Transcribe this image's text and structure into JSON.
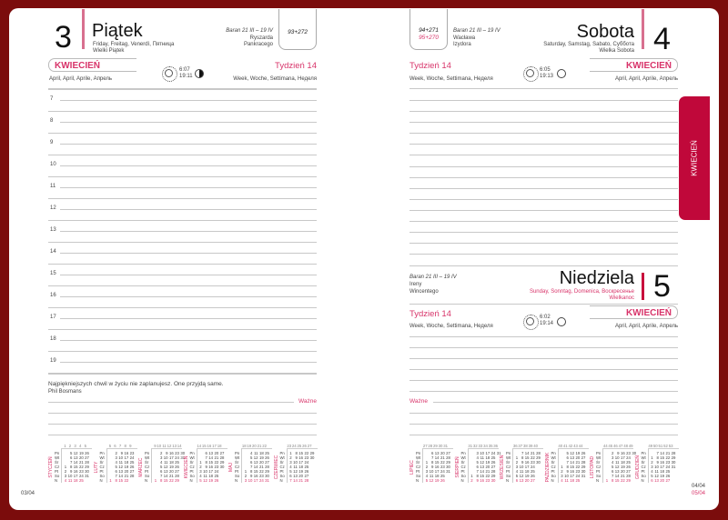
{
  "colors": {
    "frame": "#7b0c0c",
    "accent": "#d8346a",
    "sunday": "#c8103c",
    "tab": "#c0083a"
  },
  "left": {
    "day_number": "3",
    "day_name": "Piątek",
    "day_translations": "Friday, Freitag, Venerdì, Пятница",
    "holiday": "Wielki Piątek",
    "zodiac": "Baran 21 III – 19 IV",
    "name_days": [
      "Ryszarda",
      "Pankracego"
    ],
    "day_count": "93+272",
    "month": "KWIECIEŃ",
    "month_translations": "April, April, Aprile, Апрель",
    "sunrise": "6:07",
    "sunset": "19:11",
    "moon": "moon-half-icon",
    "week": "Tydzień 14",
    "week_translations": "Week, Woche, Settimana, Неделя",
    "hours": [
      "7",
      "8",
      "9",
      "10",
      "11",
      "12",
      "13",
      "14",
      "15",
      "16",
      "17",
      "18",
      "19"
    ],
    "quote": "Najpiękniejszych chwil w życiu nie zaplanujesz. One przyjdą same.",
    "quote_author": "Phil Bosmans",
    "important": "Ważne",
    "page": "03/04"
  },
  "right": {
    "sat": {
      "day_number": "4",
      "day_name": "Sobota",
      "day_translations": "Saturday, Samstag, Sabato, Суббота",
      "holiday": "Wielka Sobota",
      "zodiac": "Baran 21 III – 19 IV",
      "name_days": [
        "Wacława",
        "Izydora"
      ],
      "day_count": "94+271",
      "day_count_next": "95+270",
      "week": "Tydzień 14",
      "week_translations": "Week, Woche, Settimana, Неделя",
      "sunrise": "6:05",
      "sunset": "19:13",
      "month": "KWIECIEŃ",
      "month_translations": "April, April, Aprile, Апрель"
    },
    "sun": {
      "day_number": "5",
      "day_name": "Niedziela",
      "day_translations": "Sunday, Sonntag, Domenica, Воскресенье",
      "holiday": "Wielkanoc",
      "zodiac": "Baran 21 III – 19 IV",
      "name_days": [
        "Ireny",
        "Wincentego"
      ],
      "week": "Tydzień 14",
      "week_translations": "Week, Woche, Settimana, Неделя",
      "sunrise": "6:02",
      "sunset": "19:14",
      "month": "KWIECIEŃ",
      "month_translations": "April, April, Aprile, Апрель"
    },
    "important": "Ważne",
    "page": "04/04",
    "page_next": "05/04",
    "tab": "KWIECIEŃ"
  },
  "weekdays": [
    "Pn",
    "Wt",
    "Śr",
    "Cz",
    "Pt",
    "So",
    "N"
  ],
  "calendars": [
    {
      "name": "STYCZEŃ",
      "weeks": "1 2 3 4 5",
      "rows": [
        "5 12 19 26",
        "6 13 20 27",
        "7 14 21 28",
        "1 8 15 22 29",
        "2 9 16 23 30",
        "3 10 17 24 31",
        "4 11 18 25"
      ]
    },
    {
      "name": "LUTY",
      "weeks": "5 6 7 8 9",
      "rows": [
        "2 9 16 23",
        "3 10 17 24",
        "4 11 18 25",
        "5 12 19 26",
        "6 13 20 27",
        "7 14 21 28",
        "1 8 15 22"
      ]
    },
    {
      "name": "MARZEC",
      "weeks": "9 10 11 12 13 14",
      "rows": [
        "2 9 16 23 30",
        "3 10 17 24 31",
        "4 11 18 25",
        "5 12 19 26",
        "6 13 20 27",
        "7 14 21 28",
        "1 8 15 22 29"
      ]
    },
    {
      "name": "KWIECIEŃ",
      "weeks": "14 15 16 17 18",
      "rows": [
        "6 13 20 27",
        "7 14 21 28",
        "1 8 15 22 29",
        "2 9 16 23 30",
        "3 10 17 24",
        "4 11 18 25",
        "5 12 19 26"
      ]
    },
    {
      "name": "MAJ",
      "weeks": "18 19 20 21 22",
      "rows": [
        "4 11 18 25",
        "5 12 19 26",
        "6 13 20 27",
        "7 14 21 28",
        "1 8 15 22 29",
        "2 9 16 23 30",
        "3 10 17 24 31"
      ]
    },
    {
      "name": "CZERWIEC",
      "weeks": "23 24 25 26 27",
      "rows": [
        "1 8 15 22 29",
        "2 9 16 23 30",
        "3 10 17 24",
        "4 11 18 25",
        "5 12 19 26",
        "6 13 20 27",
        "7 14 21 28"
      ]
    },
    {
      "name": "LIPIEC",
      "weeks": "27 28 29 30 31",
      "rows": [
        "6 13 20 27",
        "7 14 21 28",
        "1 8 15 22 29",
        "2 9 16 23 30",
        "3 10 17 24 31",
        "4 11 18 25",
        "5 12 19 26"
      ]
    },
    {
      "name": "SIERPIEŃ",
      "weeks": "31 32 33 34 35 36",
      "rows": [
        "3 10 17 24 31",
        "4 11 18 25",
        "5 12 19 26",
        "6 13 20 27",
        "7 14 21 28",
        "1 8 15 22 29",
        "2 9 16 23 30"
      ]
    },
    {
      "name": "WRZESIEŃ",
      "weeks": "36 37 38 39 40",
      "rows": [
        "7 14 21 28",
        "1 8 15 22 29",
        "2 9 16 23 30",
        "3 10 17 24",
        "4 11 18 25",
        "5 12 19 26",
        "6 13 20 27"
      ]
    },
    {
      "name": "PAŹDZIERNIK",
      "weeks": "40 41 42 43 44",
      "rows": [
        "5 12 19 26",
        "6 13 20 27",
        "7 14 21 28",
        "1 8 15 22 29",
        "2 9 16 23 30",
        "3 10 17 24 31",
        "4 11 18 25"
      ]
    },
    {
      "name": "LISTOPAD",
      "weeks": "44 45 46 47 48 49",
      "rows": [
        "2 9 16 23 30",
        "3 10 17 24",
        "4 11 18 25",
        "5 12 19 26",
        "6 13 20 27",
        "7 14 21 28",
        "1 8 15 22 29"
      ]
    },
    {
      "name": "GRUDZIEŃ",
      "weeks": "49 50 51 52 53",
      "rows": [
        "7 14 21 28",
        "1 8 15 22 29",
        "2 9 16 23 30",
        "3 10 17 24 31",
        "4 11 18 25",
        "5 12 19 26",
        "6 13 20 27"
      ]
    }
  ]
}
